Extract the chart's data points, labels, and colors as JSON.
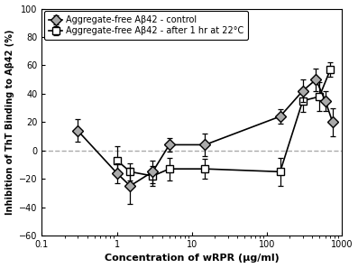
{
  "title": "",
  "xlabel": "Concentration of wRPR (μg/ml)",
  "ylabel": "Inhibition of ThT Binding to Aβ42 (%)",
  "xlim": [
    0.1,
    1000
  ],
  "ylim": [
    -60,
    100
  ],
  "yticks": [
    -60,
    -40,
    -20,
    0,
    20,
    40,
    60,
    80,
    100
  ],
  "xticks": [
    0.1,
    1,
    10,
    100,
    1000
  ],
  "xticklabels": [
    "0.1",
    "1",
    "10",
    "100",
    "1000"
  ],
  "dashed_line_y": 0,
  "series1": {
    "label": "Aggregate-free Aβ42 - control",
    "marker": "D",
    "markersize": 6,
    "markerfacecolor": "#aaaaaa",
    "linecolor": "#000000",
    "x": [
      0.3,
      1.0,
      1.5,
      3.0,
      5.0,
      15.0,
      150.0,
      300.0,
      450.0,
      600.0,
      750.0
    ],
    "y": [
      14,
      -16,
      -25,
      -15,
      4,
      4,
      24,
      42,
      50,
      35,
      20
    ],
    "yerr": [
      8,
      7,
      13,
      8,
      5,
      8,
      5,
      8,
      8,
      7,
      10
    ]
  },
  "series2": {
    "label": "Aggregate-free Aβ42 - after 1 hr at 22°C",
    "marker": "s",
    "markersize": 6,
    "markerfacecolor": "#ffffff",
    "linecolor": "#000000",
    "x": [
      1.0,
      1.5,
      3.0,
      5.0,
      15.0,
      150.0,
      300.0,
      500.0,
      700.0
    ],
    "y": [
      -7,
      -15,
      -18,
      -13,
      -13,
      -15,
      35,
      38,
      57
    ],
    "yerr": [
      10,
      6,
      7,
      8,
      7,
      10,
      8,
      10,
      5
    ]
  },
  "background_color": "#ffffff",
  "line_color": "#000000",
  "dashed_color": "#aaaaaa",
  "legend_fontsize": 7,
  "axis_fontsize": 8,
  "ylabel_fontsize": 7
}
